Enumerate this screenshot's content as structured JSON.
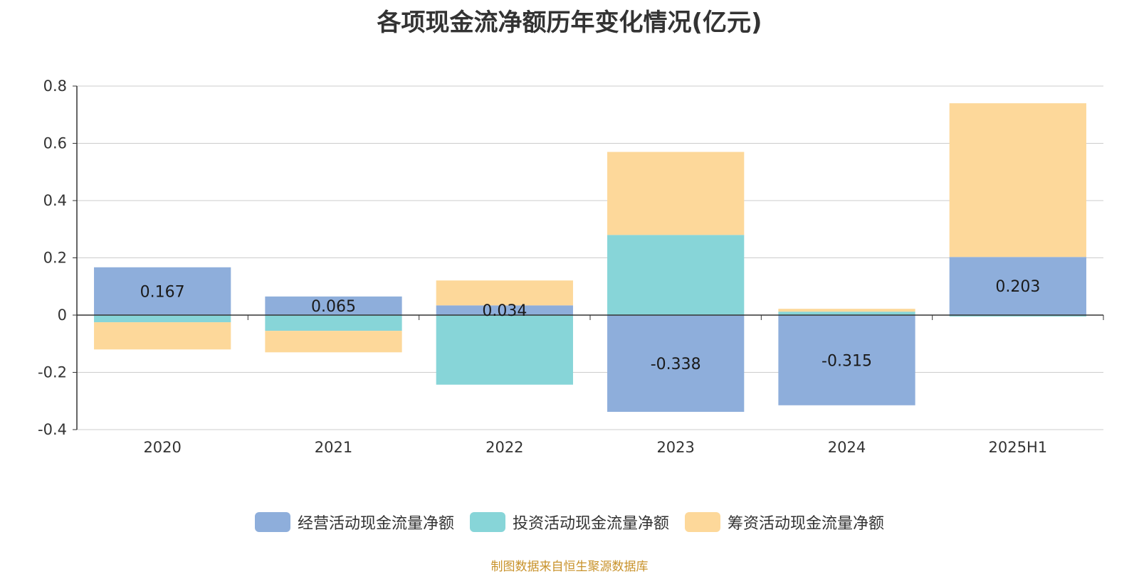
{
  "title": "各项现金流净额历年变化情况(亿元)",
  "source": "制图数据来自恒生聚源数据库",
  "chart_data": {
    "type": "bar",
    "stacked": true,
    "categories": [
      "2020",
      "2021",
      "2022",
      "2023",
      "2024",
      "2025H1"
    ],
    "ylim": [
      -0.4,
      0.8
    ],
    "yticks": [
      -0.4,
      -0.2,
      0,
      0.2,
      0.4,
      0.6,
      0.8
    ],
    "ytick_labels": [
      "-0.4",
      "-0.2",
      "0",
      "0.2",
      "0.4",
      "0.6",
      "0.8"
    ],
    "grid": true,
    "legend_position": "bottom",
    "series": [
      {
        "name": "经营活动现金流量净额",
        "color": "#8eaedb",
        "values": [
          0.167,
          0.065,
          0.034,
          -0.338,
          -0.315,
          0.203
        ],
        "labels": [
          "0.167",
          "0.065",
          "0.034",
          "-0.338",
          "-0.315",
          "0.203"
        ]
      },
      {
        "name": "投资活动现金流量净额",
        "color": "#87d5d8",
        "values": [
          -0.025,
          -0.055,
          -0.243,
          0.28,
          0.012,
          -0.005
        ]
      },
      {
        "name": "筹资活动现金流量净额",
        "color": "#fdd89a",
        "values": [
          -0.095,
          -0.075,
          0.087,
          0.29,
          0.01,
          0.537
        ]
      }
    ]
  }
}
